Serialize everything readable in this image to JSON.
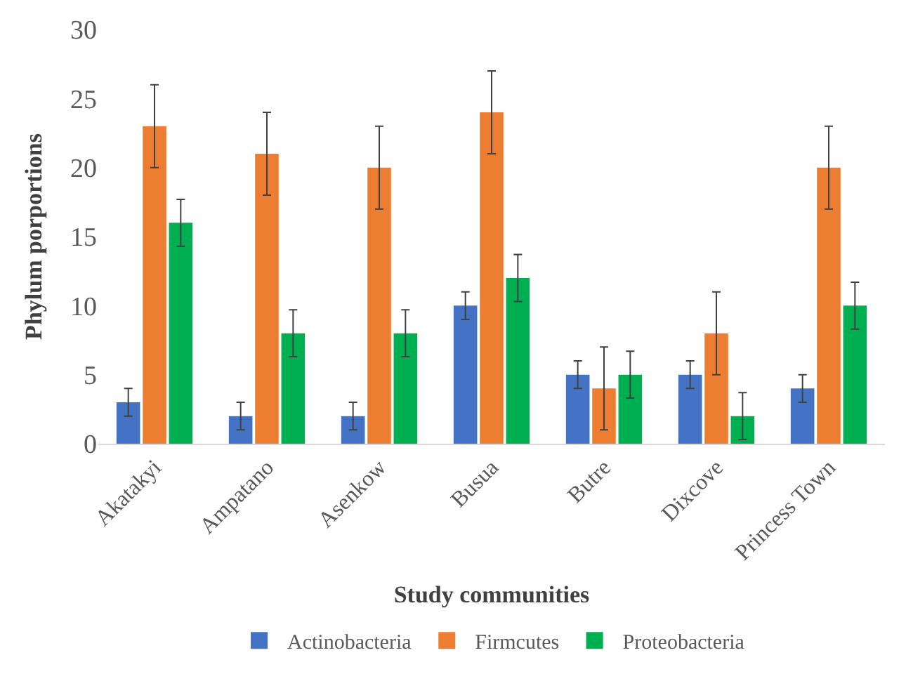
{
  "chart_data": {
    "type": "bar",
    "xlabel": "Study communities",
    "ylabel": "Phylum porportions",
    "categories": [
      "Akatakyi",
      "Ampatano",
      "Asenkow",
      "Busua",
      "Butre",
      "Dixcove",
      "Princess Town"
    ],
    "series": [
      {
        "name": "Actinobacteria",
        "color": "#4472c4",
        "values": [
          3,
          2,
          2,
          10,
          5,
          5,
          4
        ],
        "errors": [
          1,
          1,
          1,
          1,
          1,
          1,
          1
        ]
      },
      {
        "name": "Firmcutes",
        "color": "#ed7d31",
        "values": [
          23,
          21,
          20,
          24,
          4,
          8,
          20
        ],
        "errors": [
          3,
          3,
          3,
          3,
          3,
          3,
          3
        ]
      },
      {
        "name": "Proteobacteria",
        "color": "#00b050",
        "values": [
          16,
          8,
          8,
          12,
          5,
          2,
          10
        ],
        "errors": [
          1.7,
          1.7,
          1.7,
          1.7,
          1.7,
          1.7,
          1.7
        ]
      }
    ],
    "ylim": [
      0,
      30
    ],
    "yticks": [
      0,
      5,
      10,
      15,
      20,
      25,
      30
    ],
    "grid": false,
    "legend": "bottom"
  }
}
